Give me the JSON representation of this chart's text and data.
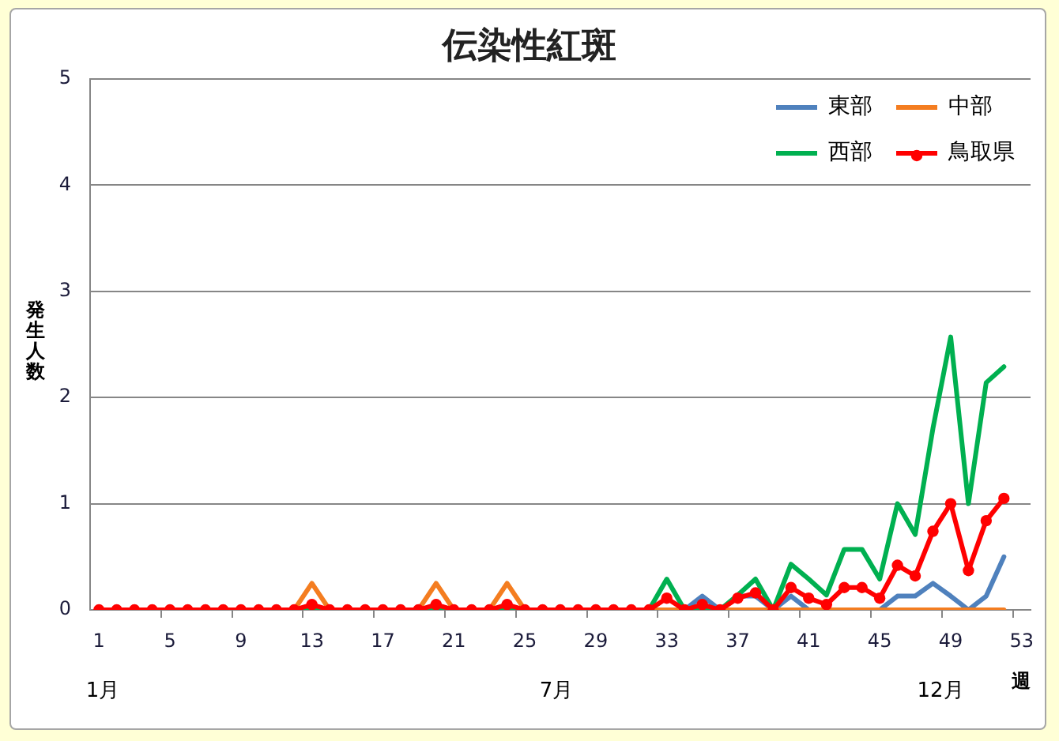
{
  "chart_data": {
    "type": "line",
    "title": "伝染性紅斑",
    "xlabel": "週",
    "ylabel": "発生人数",
    "annotations": [
      "1月",
      "7月",
      "12月"
    ],
    "x": [
      1,
      2,
      3,
      4,
      5,
      6,
      7,
      8,
      9,
      10,
      11,
      12,
      13,
      14,
      15,
      16,
      17,
      18,
      19,
      20,
      21,
      22,
      23,
      24,
      25,
      26,
      27,
      28,
      29,
      30,
      31,
      32,
      33,
      34,
      35,
      36,
      37,
      38,
      39,
      40,
      41,
      42,
      43,
      44,
      45,
      46,
      47,
      48,
      49,
      50,
      51,
      52
    ],
    "xlim": [
      0.5,
      53.5
    ],
    "xticks": [
      1,
      {
        "value": 4.5,
        "label": null
      },
      5,
      {
        "value": 8.5,
        "label": null
      },
      9,
      {
        "value": 12.5,
        "label": null
      },
      13,
      {
        "value": 16.5,
        "label": null
      },
      17,
      {
        "value": 20.5,
        "label": null
      },
      21,
      {
        "value": 24.5,
        "label": null
      },
      25,
      {
        "value": 28.5,
        "label": null
      },
      29,
      {
        "value": 32.5,
        "label": null
      },
      33,
      {
        "value": 36.5,
        "label": null
      },
      37,
      {
        "value": 40.5,
        "label": null
      },
      41,
      {
        "value": 44.5,
        "label": null
      },
      45,
      {
        "value": 48.5,
        "label": null
      },
      49,
      {
        "value": 52.5,
        "label": null
      },
      53
    ],
    "ylim": [
      0,
      5
    ],
    "yticks": [
      0,
      1,
      2,
      3,
      4,
      5
    ],
    "grid": "y",
    "legend": "top right",
    "marker": "none",
    "series": [
      {
        "name": "東部",
        "color": "#4f81bd",
        "values": [
          null,
          null,
          null,
          null,
          null,
          null,
          null,
          null,
          null,
          null,
          null,
          null,
          null,
          null,
          null,
          null,
          null,
          null,
          null,
          null,
          null,
          null,
          null,
          null,
          null,
          null,
          null,
          null,
          null,
          null,
          null,
          null,
          null,
          0,
          0.13,
          0,
          0.13,
          0.13,
          0,
          0.13,
          0,
          null,
          null,
          null,
          0,
          0.13,
          0.13,
          0.25,
          0.13,
          0,
          0.13,
          0.5
        ]
      },
      {
        "name": "中部",
        "color": "#f47d20",
        "values": [
          null,
          null,
          null,
          null,
          null,
          null,
          null,
          null,
          null,
          null,
          null,
          0,
          0.25,
          0,
          null,
          null,
          null,
          null,
          0,
          0.25,
          0,
          null,
          0,
          0.25,
          0,
          null,
          null,
          null,
          null,
          null,
          null,
          0,
          0,
          0,
          null,
          0,
          0,
          0,
          0,
          0,
          0,
          0,
          0,
          0,
          0,
          0,
          0,
          0,
          0,
          0,
          0,
          0
        ]
      },
      {
        "name": "西部",
        "color": "#00b050",
        "values": [
          null,
          null,
          null,
          null,
          null,
          null,
          null,
          null,
          null,
          null,
          null,
          0,
          0,
          0,
          null,
          null,
          null,
          null,
          0,
          0,
          0,
          null,
          0,
          0,
          0,
          null,
          null,
          null,
          null,
          null,
          null,
          0,
          0.29,
          0,
          0,
          0,
          0.14,
          0.29,
          0,
          0.43,
          0.29,
          0.14,
          0.57,
          0.57,
          0.29,
          1.0,
          0.71,
          1.71,
          2.57,
          1.0,
          2.14,
          2.29
        ]
      },
      {
        "name": "鳥取県",
        "color": "#ff0000",
        "marker": "circle",
        "values": [
          0,
          0,
          0,
          0,
          0,
          0,
          0,
          0,
          0,
          0,
          0,
          0,
          0.05,
          0,
          0,
          0,
          0,
          0,
          0,
          0.05,
          0,
          0,
          0,
          0.05,
          0,
          0,
          0,
          0,
          0,
          0,
          0,
          0,
          0.11,
          0,
          0.05,
          0,
          0.11,
          0.16,
          0,
          0.21,
          0.11,
          0.05,
          0.21,
          0.21,
          0.11,
          0.42,
          0.32,
          0.74,
          1.0,
          0.37,
          0.84,
          1.05
        ]
      }
    ]
  }
}
